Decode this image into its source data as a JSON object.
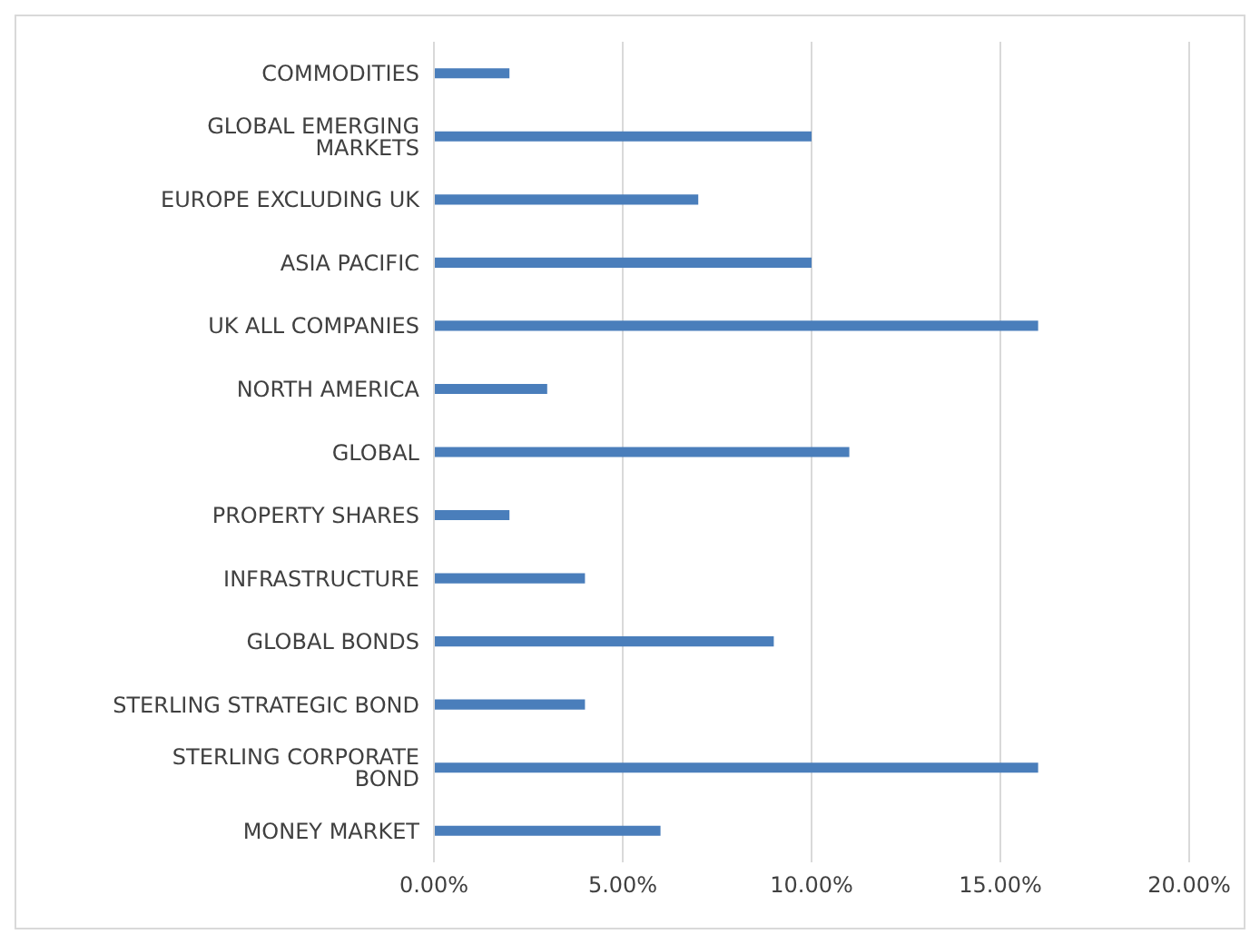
{
  "chart_data": {
    "type": "bar",
    "orientation": "horizontal",
    "categories": [
      "COMMODITIES",
      "GLOBAL  EMERGING MARKETS",
      "EUROPE EXCLUDING UK",
      "ASIA PACIFIC",
      "UK ALL COMPANIES",
      "NORTH AMERICA",
      "GLOBAL",
      "PROPERTY SHARES",
      "INFRASTRUCTURE",
      "GLOBAL BONDS",
      "STERLING STRATEGIC BOND",
      "STERLING CORPORATE BOND",
      "MONEY MARKET"
    ],
    "values": [
      2,
      10,
      7,
      10,
      16,
      3,
      11,
      2,
      4,
      9,
      4,
      16,
      6
    ],
    "color": "#4a7ebb",
    "xlim": [
      0,
      20
    ],
    "xticks": [
      {
        "value": 0,
        "label": "0.00%"
      },
      {
        "value": 5,
        "label": "5.00%"
      },
      {
        "value": 10,
        "label": "10.00%"
      },
      {
        "value": 15,
        "label": "15.00%"
      },
      {
        "value": 20,
        "label": "20.00%"
      }
    ],
    "grid": "x"
  }
}
